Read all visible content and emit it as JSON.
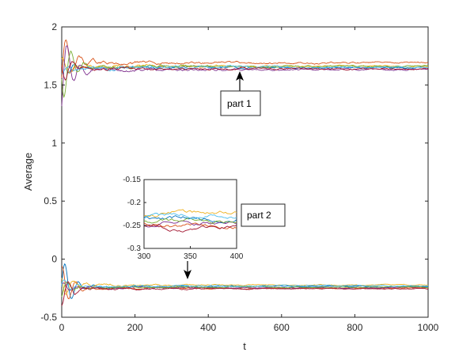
{
  "chart_data": {
    "type": "line",
    "xlabel": "t",
    "ylabel": "Average",
    "xlim": [
      0,
      1000
    ],
    "ylim": [
      -0.5,
      2
    ],
    "xticks": [
      0,
      200,
      400,
      600,
      800,
      1000
    ],
    "yticks": [
      -0.5,
      0,
      0.5,
      1,
      1.5,
      2
    ],
    "grid": false,
    "colors": [
      "#0072BD",
      "#D95319",
      "#EDB120",
      "#7E2F8E",
      "#77AC30",
      "#4DBEEE",
      "#A2142F"
    ],
    "upper_group": {
      "converged_values": [
        1.65,
        1.69,
        1.66,
        1.63,
        1.66,
        1.65,
        1.64
      ],
      "initial_values": [
        1.55,
        1.38,
        1.75,
        2.0,
        2.0,
        1.6,
        1.5
      ]
    },
    "lower_group": {
      "converged_values": [
        -0.235,
        -0.25,
        -0.222,
        -0.245,
        -0.24,
        -0.23,
        -0.255
      ],
      "initial_values": [
        0.05,
        -0.45,
        -0.1,
        -0.2,
        -0.15,
        -0.3,
        -0.4
      ]
    },
    "inset": {
      "xlim": [
        300,
        400
      ],
      "ylim": [
        -0.3,
        -0.15
      ],
      "xticks": [
        300,
        350,
        400
      ],
      "yticks": [
        -0.3,
        -0.25,
        -0.2,
        -0.15
      ]
    },
    "annotations": [
      {
        "text": "part 1",
        "target_x": 480,
        "target_y": 1.62
      },
      {
        "text": "part 2",
        "target_x": 340,
        "target_y": -0.2
      }
    ]
  }
}
